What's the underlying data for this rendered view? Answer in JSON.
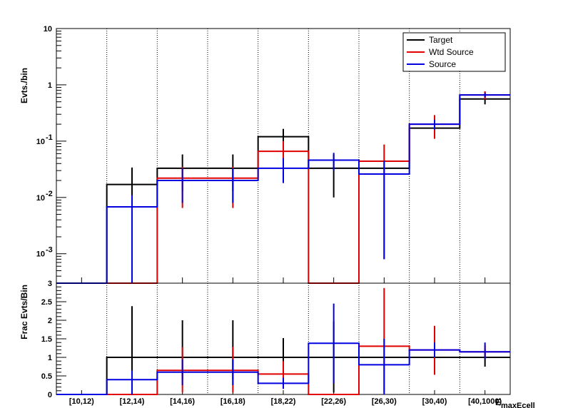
{
  "chart_data": [
    {
      "type": "histogram",
      "panel": "top",
      "ylabel": "Evts./bin",
      "yscale": "log",
      "ylim": [
        0.0003,
        10
      ],
      "y_ticks": [
        {
          "value": 10,
          "text": "10"
        },
        {
          "value": 1,
          "text": "1"
        },
        {
          "value": 0.1,
          "base": "10",
          "exp": "-1"
        },
        {
          "value": 0.01,
          "base": "10",
          "exp": "-2"
        },
        {
          "value": 0.001,
          "base": "10",
          "exp": "-3"
        }
      ],
      "categories": [
        "[10,12)",
        "[12,14)",
        "[14,16)",
        "[16,18)",
        "[18,22)",
        "[22,26)",
        "[26,30)",
        "[30,40)",
        "[40,1000)"
      ],
      "legend": {
        "position": "top-right",
        "entries": [
          {
            "label": "Target",
            "color": "#000000"
          },
          {
            "label": "Wtd Source",
            "color": "#e00000"
          },
          {
            "label": "Source",
            "color": "#0000e0"
          }
        ]
      },
      "series": [
        {
          "name": "Target",
          "color": "#000000",
          "values": [
            null,
            0.017,
            0.033,
            0.033,
            0.12,
            0.033,
            0.033,
            0.17,
            0.56
          ],
          "err_lo": [
            null,
            null,
            0.013,
            0.013,
            0.07,
            0.01,
            null,
            null,
            0.45
          ],
          "err_hi": [
            null,
            0.034,
            0.058,
            0.058,
            0.165,
            0.058,
            null,
            null,
            0.75
          ]
        },
        {
          "name": "Wtd Source",
          "color": "#e00000",
          "values": [
            null,
            null,
            0.022,
            0.022,
            0.066,
            null,
            0.044,
            0.2,
            0.66
          ],
          "err_lo": [
            null,
            null,
            0.0065,
            0.0065,
            0.03,
            null,
            0.0008,
            0.11,
            0.55
          ],
          "err_hi": [
            null,
            null,
            0.035,
            0.035,
            0.1,
            null,
            0.087,
            0.29,
            0.77
          ]
        },
        {
          "name": "Source",
          "color": "#0000e0",
          "values": [
            null,
            0.0068,
            0.02,
            0.02,
            0.033,
            0.046,
            0.026,
            0.2,
            0.66
          ],
          "err_lo": [
            null,
            null,
            0.008,
            0.008,
            0.018,
            0.03,
            0.0008,
            0.16,
            0.6
          ],
          "err_hi": [
            null,
            0.011,
            0.033,
            0.033,
            0.05,
            0.062,
            0.045,
            0.24,
            0.72
          ]
        }
      ]
    },
    {
      "type": "histogram",
      "panel": "bottom",
      "ylabel": "Frac Evts/Bin",
      "xlabel": "E",
      "xlabel_sub": "maxEcell",
      "ylim": [
        0,
        3
      ],
      "y_ticks": [
        "0",
        "0.5",
        "1",
        "1.5",
        "2",
        "2.5",
        "3"
      ],
      "categories": [
        "[10,12)",
        "[12,14)",
        "[14,16)",
        "[16,18)",
        "[18,22)",
        "[22,26)",
        "[26,30)",
        "[30,40)",
        "[40,1000)"
      ],
      "series": [
        {
          "name": "Target",
          "color": "#000000",
          "values": [
            0,
            1,
            1,
            1,
            1,
            1,
            1,
            1,
            1
          ],
          "err_lo": [
            null,
            0,
            0.4,
            0.4,
            0.5,
            0.05,
            null,
            null,
            0.75
          ],
          "err_hi": [
            null,
            2.38,
            2.0,
            2.0,
            1.52,
            1.97,
            null,
            null,
            1.22
          ]
        },
        {
          "name": "Wtd Source",
          "color": "#e00000",
          "values": [
            0,
            0,
            0.65,
            0.65,
            0.55,
            0,
            1.3,
            1.2,
            1.15
          ],
          "err_lo": [
            null,
            null,
            0.05,
            0.05,
            0.2,
            null,
            0.05,
            0.53,
            0.98
          ],
          "err_hi": [
            null,
            null,
            1.28,
            1.28,
            0.9,
            null,
            2.87,
            1.85,
            1.32
          ]
        },
        {
          "name": "Source",
          "color": "#0000e0",
          "values": [
            0,
            0.4,
            0.6,
            0.6,
            0.3,
            1.38,
            0.8,
            1.2,
            1.15
          ],
          "err_lo": [
            null,
            0,
            0.25,
            0.25,
            0.15,
            0.3,
            0,
            1.0,
            0.95
          ],
          "err_hi": [
            null,
            0.65,
            0.95,
            0.95,
            0.45,
            2.45,
            1.5,
            1.4,
            1.4
          ]
        }
      ]
    }
  ]
}
